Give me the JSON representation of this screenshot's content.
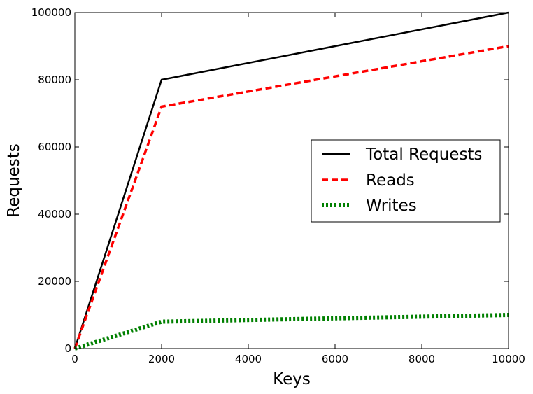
{
  "chart_data": {
    "type": "line",
    "title": "",
    "xlabel": "Keys",
    "ylabel": "Requests",
    "xlim": [
      0,
      10000
    ],
    "ylim": [
      0,
      100000
    ],
    "x_ticks": [
      0,
      2000,
      4000,
      6000,
      8000,
      10000
    ],
    "y_ticks": [
      0,
      20000,
      40000,
      60000,
      80000,
      100000
    ],
    "x_tick_labels": [
      "0",
      "2000",
      "4000",
      "6000",
      "8000",
      "10000"
    ],
    "y_tick_labels": [
      "0",
      "20000",
      "40000",
      "60000",
      "80000",
      "100000"
    ],
    "grid": false,
    "legend_position": "center-right",
    "x": [
      0,
      2000,
      10000
    ],
    "series": [
      {
        "name": "Total Requests",
        "values": [
          0,
          80000,
          100000
        ],
        "color": "#000000",
        "style": "solid"
      },
      {
        "name": "Reads",
        "values": [
          0,
          72000,
          90000
        ],
        "color": "#ff0000",
        "style": "dashed"
      },
      {
        "name": "Writes",
        "values": [
          0,
          8000,
          10000
        ],
        "color": "#008000",
        "style": "dashdot"
      }
    ]
  }
}
